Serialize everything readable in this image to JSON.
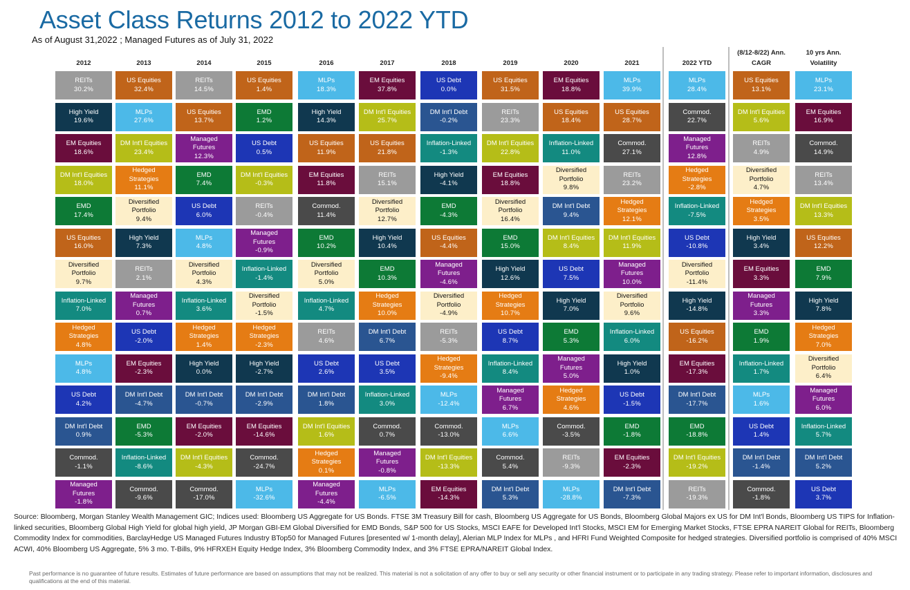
{
  "title": "Asset Class Returns 2012 to 2022 YTD",
  "subtitle": "As of August 31,2022 ; Managed Futures as of July 31, 2022",
  "source": "Source: Bloomberg, Morgan Stanley Wealth Management GIC; Indices used: Bloomberg US Aggregate for US Bonds. FTSE 3M Treasury Bill for cash, Bloomberg US Aggregate for  US Bonds, Bloomberg Global Majors ex US for DM Int'l Bonds, Bloomberg US TIPS for Inflation-linked securities, Bloomberg Global High Yield for  global high yield, JP Morgan GBI-EM Global Diversified for EMD Bonds, S&P 500 for US Stocks, MSCI EAFE for Developed Int'l Stocks, MSCI EM for Emerging Market Stocks, FTSE EPRA NAREIT Global for REITs, Bloomberg Commodity Index for commodities, BarclayHedge US Managed Futures Industry BTop50  for Managed Futures [presented w/ 1-month delay], Alerian MLP Index for MLPs , and HFRI Fund Weighted Composite for hedged strategies. Diversified portfolio is comprised of 40% MSCI ACWI, 40% Bloomberg US Aggregate, 5% 3 mo. T-Bills, 9% HFRXEH Equity Hedge Index, 3% Bloomberg Commodity Index, and 3% FTSE EPRA/NAREIT Global Index.",
  "disclaimer": "Past performance is no guarantee of future results. Estimates of future performance are based on assumptions that may not be realized. This material is not a solicitation of any offer to buy or sell any security or other financial instrument or to participate in any trading strategy. Please refer to important information, disclosures and qualifications at the end of this material.",
  "colors": {
    "REITs": "#9b9b9b",
    "US Equities": "#c0641a",
    "High Yield": "#10384f",
    "EM Equities": "#6a0d3c",
    "DM Int'l Equities": "#b5bd18",
    "EMD": "#0d7a36",
    "Diversified Portfolio": "#fdefc9",
    "Inflation-Linked": "#138a80",
    "Hedged Strategies": "#e57c14",
    "MLPs": "#4cb9e8",
    "US Debt": "#1d36b5",
    "DM Int'l Debt": "#2a5591",
    "Commod.": "#4a4a4a",
    "Managed Futures": "#7e1f8c"
  },
  "chart_data": {
    "type": "table",
    "title": "Asset Class Returns 2012 to 2022 YTD",
    "columns": [
      {
        "header": [
          "2012"
        ],
        "cells": [
          [
            "REITs",
            "30.2%"
          ],
          [
            "High Yield",
            "19.6%"
          ],
          [
            "EM Equities",
            "18.6%"
          ],
          [
            "DM Int'l Equities",
            "18.0%"
          ],
          [
            "EMD",
            "17.4%"
          ],
          [
            "US Equities",
            "16.0%"
          ],
          [
            "Diversified Portfolio",
            "9.7%"
          ],
          [
            "Inflation-Linked",
            "7.0%"
          ],
          [
            "Hedged Strategies",
            "4.8%"
          ],
          [
            "MLPs",
            "4.8%"
          ],
          [
            "US Debt",
            "4.2%"
          ],
          [
            "DM Int'l Debt",
            "0.9%"
          ],
          [
            "Commod.",
            "-1.1%"
          ],
          [
            "Managed Futures",
            "-1.8%"
          ]
        ]
      },
      {
        "header": [
          "2013"
        ],
        "cells": [
          [
            "US Equities",
            "32.4%"
          ],
          [
            "MLPs",
            "27.6%"
          ],
          [
            "DM Int'l Equities",
            "23.4%"
          ],
          [
            "Hedged Strategies",
            "11.1%"
          ],
          [
            "Diversified Portfolio",
            "9.4%"
          ],
          [
            "High Yield",
            "7.3%"
          ],
          [
            "REITs",
            "2.1%"
          ],
          [
            "Managed Futures",
            "0.7%"
          ],
          [
            "US Debt",
            "-2.0%"
          ],
          [
            "EM Equities",
            "-2.3%"
          ],
          [
            "DM Int'l Debt",
            "-4.7%"
          ],
          [
            "EMD",
            "-5.3%"
          ],
          [
            "Inflation-Linked",
            "-8.6%"
          ],
          [
            "Commod.",
            "-9.6%"
          ]
        ]
      },
      {
        "header": [
          "2014"
        ],
        "cells": [
          [
            "REITs",
            "14.5%"
          ],
          [
            "US Equities",
            "13.7%"
          ],
          [
            "Managed Futures",
            "12.3%"
          ],
          [
            "EMD",
            "7.4%"
          ],
          [
            "US Debt",
            "6.0%"
          ],
          [
            "MLPs",
            "4.8%"
          ],
          [
            "Diversified Portfolio",
            "4.3%"
          ],
          [
            "Inflation-Linked",
            "3.6%"
          ],
          [
            "Hedged Strategies",
            "1.4%"
          ],
          [
            "High Yield",
            "0.0%"
          ],
          [
            "DM Int'l Debt",
            "-0.7%"
          ],
          [
            "EM Equities",
            "-2.0%"
          ],
          [
            "DM Int'l Equities",
            "-4.3%"
          ],
          [
            "Commod.",
            "-17.0%"
          ]
        ]
      },
      {
        "header": [
          "2015"
        ],
        "cells": [
          [
            "US Equities",
            "1.4%"
          ],
          [
            "EMD",
            "1.2%"
          ],
          [
            "US Debt",
            "0.5%"
          ],
          [
            "DM Int'l Equities",
            "-0.3%"
          ],
          [
            "REITs",
            "-0.4%"
          ],
          [
            "Managed Futures",
            "-0.9%"
          ],
          [
            "Inflation-Linked",
            "-1.4%"
          ],
          [
            "Diversified Portfolio",
            "-1.5%"
          ],
          [
            "Hedged Strategies",
            "-2.3%"
          ],
          [
            "High Yield",
            "-2.7%"
          ],
          [
            "DM Int'l Debt",
            "-2.9%"
          ],
          [
            "EM Equities",
            "-14.6%"
          ],
          [
            "Commod.",
            "-24.7%"
          ],
          [
            "MLPs",
            "-32.6%"
          ]
        ]
      },
      {
        "header": [
          "2016"
        ],
        "cells": [
          [
            "MLPs",
            "18.3%"
          ],
          [
            "High Yield",
            "14.3%"
          ],
          [
            "US Equities",
            "11.9%"
          ],
          [
            "EM Equities",
            "11.8%"
          ],
          [
            "Commod.",
            "11.4%"
          ],
          [
            "EMD",
            "10.2%"
          ],
          [
            "Diversified Portfolio",
            "5.0%"
          ],
          [
            "Inflation-Linked",
            "4.7%"
          ],
          [
            "REITs",
            "4.6%"
          ],
          [
            "US Debt",
            "2.6%"
          ],
          [
            "DM Int'l Debt",
            "1.8%"
          ],
          [
            "DM Int'l Equities",
            "1.6%"
          ],
          [
            "Hedged Strategies",
            "0.1%"
          ],
          [
            "Managed Futures",
            "-4.4%"
          ]
        ]
      },
      {
        "header": [
          "2017"
        ],
        "cells": [
          [
            "EM Equities",
            "37.8%"
          ],
          [
            "DM Int'l Equities",
            "25.7%"
          ],
          [
            "US Equities",
            "21.8%"
          ],
          [
            "REITs",
            "15.1%"
          ],
          [
            "Diversified Portfolio",
            "12.7%"
          ],
          [
            "High Yield",
            "10.4%"
          ],
          [
            "EMD",
            "10.3%"
          ],
          [
            "Hedged Strategies",
            "10.0%"
          ],
          [
            "DM Int'l Debt",
            "6.7%"
          ],
          [
            "US Debt",
            "3.5%"
          ],
          [
            "Inflation-Linked",
            "3.0%"
          ],
          [
            "Commod.",
            "0.7%"
          ],
          [
            "Managed Futures",
            "-0.8%"
          ],
          [
            "MLPs",
            "-6.5%"
          ]
        ]
      },
      {
        "header": [
          "2018"
        ],
        "cells": [
          [
            "US Debt",
            "0.0%"
          ],
          [
            "DM Int'l Debt",
            "-0.2%"
          ],
          [
            "Inflation-Linked",
            "-1.3%"
          ],
          [
            "High Yield",
            "-4.1%"
          ],
          [
            "EMD",
            "-4.3%"
          ],
          [
            "US Equities",
            "-4.4%"
          ],
          [
            "Managed Futures",
            "-4.6%"
          ],
          [
            "Diversified Portfolio",
            "-4.9%"
          ],
          [
            "REITs",
            "-5.3%"
          ],
          [
            "Hedged Strategies",
            "-9.4%"
          ],
          [
            "MLPs",
            "-12.4%"
          ],
          [
            "Commod.",
            "-13.0%"
          ],
          [
            "DM Int'l Equities",
            "-13.3%"
          ],
          [
            "EM Equities",
            "-14.3%"
          ]
        ]
      },
      {
        "header": [
          "2019"
        ],
        "cells": [
          [
            "US Equities",
            "31.5%"
          ],
          [
            "REITs",
            "23.3%"
          ],
          [
            "DM Int'l Equities",
            "22.8%"
          ],
          [
            "EM Equities",
            "18.8%"
          ],
          [
            "Diversified Portfolio",
            "16.4%"
          ],
          [
            "EMD",
            "15.0%"
          ],
          [
            "High Yield",
            "12.6%"
          ],
          [
            "Hedged Strategies",
            "10.7%"
          ],
          [
            "US Debt",
            "8.7%"
          ],
          [
            "Inflation-Linked",
            "8.4%"
          ],
          [
            "Managed Futures",
            "6.7%"
          ],
          [
            "MLPs",
            "6.6%"
          ],
          [
            "Commod.",
            "5.4%"
          ],
          [
            "DM Int'l Debt",
            "5.3%"
          ]
        ]
      },
      {
        "header": [
          "2020"
        ],
        "cells": [
          [
            "EM Equities",
            "18.8%"
          ],
          [
            "US Equities",
            "18.4%"
          ],
          [
            "Inflation-Linked",
            "11.0%"
          ],
          [
            "Diversified Portfolio",
            "9.8%"
          ],
          [
            "DM Int'l Debt",
            "9.4%"
          ],
          [
            "DM Int'l Equities",
            "8.4%"
          ],
          [
            "US Debt",
            "7.5%"
          ],
          [
            "High Yield",
            "7.0%"
          ],
          [
            "EMD",
            "5.3%"
          ],
          [
            "Managed Futures",
            "5.0%"
          ],
          [
            "Hedged Strategies",
            "4.6%"
          ],
          [
            "Commod.",
            "-3.5%"
          ],
          [
            "REITs",
            "-9.3%"
          ],
          [
            "MLPs",
            "-28.8%"
          ]
        ]
      },
      {
        "header": [
          "2021"
        ],
        "cells": [
          [
            "MLPs",
            "39.9%"
          ],
          [
            "US Equities",
            "28.7%"
          ],
          [
            "Commod.",
            "27.1%"
          ],
          [
            "REITs",
            "23.2%"
          ],
          [
            "Hedged Strategies",
            "12.1%"
          ],
          [
            "DM Int'l Equities",
            "11.9%"
          ],
          [
            "Managed Futures",
            "10.0%"
          ],
          [
            "Diversified Portfolio",
            "9.6%"
          ],
          [
            "Inflation-Linked",
            "6.0%"
          ],
          [
            "High Yield",
            "1.0%"
          ],
          [
            "US Debt",
            "-1.5%"
          ],
          [
            "EMD",
            "-1.8%"
          ],
          [
            "EM Equities",
            "-2.3%"
          ],
          [
            "DM Int'l Debt",
            "-7.3%"
          ]
        ]
      },
      {
        "header": [
          "2022 YTD"
        ],
        "cells": [
          [
            "MLPs",
            "28.4%"
          ],
          [
            "Commod.",
            "22.7%"
          ],
          [
            "Managed Futures",
            "12.8%"
          ],
          [
            "Hedged Strategies",
            "-2.8%"
          ],
          [
            "Inflation-Linked",
            "-7.5%"
          ],
          [
            "US Debt",
            "-10.8%"
          ],
          [
            "Diversified Portfolio",
            "-11.4%"
          ],
          [
            "High Yield",
            "-14.8%"
          ],
          [
            "US Equities",
            "-16.2%"
          ],
          [
            "EM Equities",
            "-17.3%"
          ],
          [
            "DM Int'l Debt",
            "-17.7%"
          ],
          [
            "EMD",
            "-18.8%"
          ],
          [
            "DM Int'l Equities",
            "-19.2%"
          ],
          [
            "REITs",
            "-19.3%"
          ]
        ]
      },
      {
        "header": [
          "(8/12-8/22) Ann.",
          "CAGR"
        ],
        "cells": [
          [
            "US Equities",
            "13.1%"
          ],
          [
            "DM Int'l Equities",
            "5.6%"
          ],
          [
            "REITs",
            "4.9%"
          ],
          [
            "Diversified Portfolio",
            "4.7%"
          ],
          [
            "Hedged Strategies",
            "3.5%"
          ],
          [
            "High Yield",
            "3.4%"
          ],
          [
            "EM Equities",
            "3.3%"
          ],
          [
            "Managed Futures",
            "3.3%"
          ],
          [
            "EMD",
            "1.9%"
          ],
          [
            "Inflation-Linked",
            "1.7%"
          ],
          [
            "MLPs",
            "1.6%"
          ],
          [
            "US Debt",
            "1.4%"
          ],
          [
            "DM Int'l Debt",
            "-1.4%"
          ],
          [
            "Commod.",
            "-1.8%"
          ]
        ]
      },
      {
        "header": [
          "10 yrs Ann.",
          "Volatility"
        ],
        "cells": [
          [
            "MLPs",
            "23.1%"
          ],
          [
            "EM Equities",
            "16.9%"
          ],
          [
            "Commod.",
            "14.9%"
          ],
          [
            "REITs",
            "13.4%"
          ],
          [
            "DM Int'l Equities",
            "13.3%"
          ],
          [
            "US Equities",
            "12.2%"
          ],
          [
            "EMD",
            "7.9%"
          ],
          [
            "High Yield",
            "7.8%"
          ],
          [
            "Hedged Strategies",
            "7.0%"
          ],
          [
            "Diversified Portfolio",
            "6.4%"
          ],
          [
            "Managed Futures",
            "6.0%"
          ],
          [
            "Inflation-Linked",
            "5.7%"
          ],
          [
            "DM Int'l Debt",
            "5.2%"
          ],
          [
            "US Debt",
            "3.7%"
          ]
        ]
      }
    ]
  }
}
